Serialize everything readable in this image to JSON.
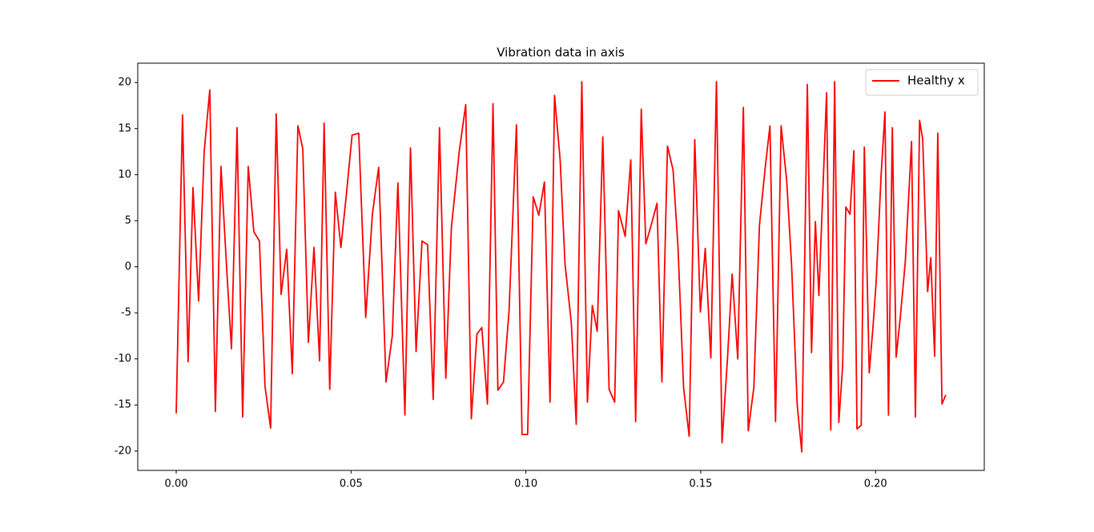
{
  "chart_data": {
    "type": "line",
    "title": "Vibration data in axis",
    "x": [
      0,
      0.0018,
      0.0034,
      0.0048,
      0.0064,
      0.008,
      0.0096,
      0.0112,
      0.0128,
      0.0144,
      0.0158,
      0.0174,
      0.019,
      0.0206,
      0.0222,
      0.0238,
      0.0254,
      0.027,
      0.0286,
      0.03,
      0.0316,
      0.0332,
      0.0348,
      0.0362,
      0.0378,
      0.0394,
      0.041,
      0.0423,
      0.0439,
      0.0455,
      0.0471,
      0.0487,
      0.0503,
      0.0522,
      0.0542,
      0.0561,
      0.0579,
      0.06,
      0.0618,
      0.0634,
      0.0654,
      0.067,
      0.0686,
      0.0703,
      0.0719,
      0.0735,
      0.0753,
      0.0771,
      0.0787,
      0.081,
      0.0828,
      0.0844,
      0.086,
      0.0874,
      0.089,
      0.0906,
      0.092,
      0.0936,
      0.0952,
      0.0973,
      0.0989,
      0.1005,
      0.1021,
      0.1037,
      0.1053,
      0.1069,
      0.1082,
      0.1098,
      0.1112,
      0.113,
      0.1144,
      0.116,
      0.1176,
      0.119,
      0.1204,
      0.122,
      0.1238,
      0.1254,
      0.1265,
      0.1284,
      0.13,
      0.1314,
      0.133,
      0.1343,
      0.1359,
      0.1375,
      0.1389,
      0.1405,
      0.1421,
      0.1435,
      0.1451,
      0.1467,
      0.1483,
      0.1499,
      0.1513,
      0.1529,
      0.1545,
      0.1561,
      0.1577,
      0.159,
      0.1606,
      0.1622,
      0.1636,
      0.1652,
      0.1668,
      0.1684,
      0.1698,
      0.1714,
      0.173,
      0.1746,
      0.176,
      0.1776,
      0.1789,
      0.1805,
      0.1817,
      0.1828,
      0.1838,
      0.186,
      0.1872,
      0.1883,
      0.1895,
      0.1906,
      0.1915,
      0.1927,
      0.1938,
      0.1947,
      0.1959,
      0.1968,
      0.1982,
      0.1993,
      0.2002,
      0.2016,
      0.2027,
      0.2037,
      0.2048,
      0.2059,
      0.2071,
      0.2085,
      0.2103,
      0.2114,
      0.2126,
      0.2135,
      0.2149,
      0.2158,
      0.2169,
      0.2178,
      0.219,
      0.2201
    ],
    "series": [
      {
        "name": "Healthy x",
        "color": "#ff0000",
        "values": [
          -15.9,
          16.5,
          -10.3,
          8.6,
          -3.7,
          12.5,
          19.2,
          -15.7,
          10.9,
          0,
          -8.9,
          15.1,
          -16.3,
          10.9,
          3.8,
          2.8,
          -13,
          -17.5,
          16.6,
          -3,
          1.9,
          -11.6,
          15.3,
          12.8,
          -8.2,
          2.1,
          -10.2,
          15.6,
          -13.3,
          8.1,
          2.1,
          8,
          14.3,
          14.5,
          -5.5,
          5.7,
          10.8,
          -12.5,
          -7.5,
          9.1,
          -16.1,
          12.9,
          -9.2,
          2.8,
          2.4,
          -14.4,
          15.1,
          -12.1,
          4.3,
          12.7,
          17.6,
          -16.5,
          -7.3,
          -6.6,
          -14.9,
          17.7,
          -13.4,
          -12.5,
          -4.7,
          15.4,
          -18.2,
          -18.2,
          7.6,
          5.6,
          9.2,
          -14.7,
          18.6,
          11.6,
          0.3,
          -6.1,
          -17.1,
          20.1,
          -14.7,
          -4.2,
          -7,
          14.1,
          -13.3,
          -14.7,
          6.1,
          3.3,
          11.6,
          -16.8,
          17.1,
          2.5,
          4.6,
          6.9,
          -12.5,
          13.1,
          10.5,
          2.2,
          -13.1,
          -18.4,
          13.8,
          -4.9,
          2,
          -9.9,
          20.1,
          -19.1,
          -9.7,
          -0.8,
          -10,
          17.3,
          -17.8,
          -13.1,
          4.5,
          10.6,
          15.3,
          -16.8,
          15.3,
          9.3,
          0.1,
          -15,
          -20.1,
          19.8,
          -9.3,
          4.9,
          -3.1,
          18.9,
          -17.7,
          20.1,
          -16.9,
          -10.7,
          6.5,
          5.7,
          12.6,
          -17.6,
          -17.2,
          13,
          -11.5,
          -6.4,
          -1.5,
          10,
          16.8,
          -16.1,
          15.1,
          -9.8,
          -5.4,
          0.5,
          13.6,
          -16.3,
          15.9,
          13.8,
          -2.7,
          1,
          -9.7,
          14.5,
          -14.9,
          -13.9
        ]
      }
    ],
    "xlim": [
      -0.011,
      0.2311
    ],
    "ylim": [
      -22.1,
      22.1
    ],
    "xticks": [
      {
        "value": 0,
        "label": "0.00"
      },
      0.05,
      {
        "value": 0.1,
        "label": "0.10"
      },
      0.15,
      {
        "value": 0.2,
        "label": "0.20"
      }
    ],
    "yticks": [
      -20,
      -15,
      -10,
      -5,
      0,
      5,
      10,
      15,
      20
    ],
    "grid": false,
    "legend": "upper right"
  }
}
